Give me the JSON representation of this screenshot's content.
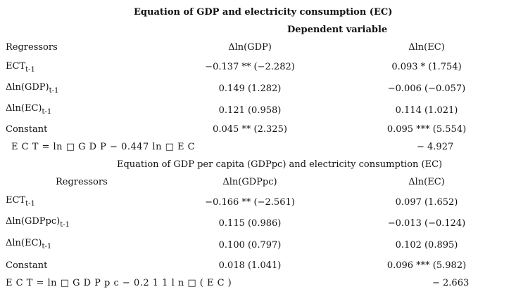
{
  "table1": {
    "title": "Equation of GDP and electricity consumption (EC)",
    "dependent_label": "Dependent variable",
    "header": {
      "regressors": "Regressors",
      "col1": "Δln(GDP)",
      "col2": "Δln(EC)"
    },
    "rows": [
      {
        "label": "ECT",
        "sub": "t-1",
        "v1": "−0.137 ** (−2.282)",
        "v2": "0.093 * (1.754)"
      },
      {
        "label": "Δln(GDP)",
        "sub": "t-1",
        "v1": "0.149 (1.282)",
        "v2": "−0.006 (−0.057)"
      },
      {
        "label": "Δln(EC)",
        "sub": "t-1",
        "v1": "0.121 (0.958)",
        "v2": "0.114 (1.021)"
      },
      {
        "label": "Constant",
        "sub": "",
        "v1": "0.045 ** (2.325)",
        "v2": "0.095 *** (5.554)"
      }
    ],
    "equation": {
      "text": "E C T =  ln  □    G D P    − 0.447   ln   □     E C",
      "const": "− 4.927"
    }
  },
  "table2": {
    "title": "Equation of GDP per capita (GDPpc) and electricity consumption (EC)",
    "header": {
      "regressors": "Regressors",
      "col1": "Δln(GDPpc)",
      "col2": "Δln(EC)"
    },
    "rows": [
      {
        "label": "ECT",
        "sub": "t-1",
        "v1": "−0.166 ** (−2.561)",
        "v2": "0.097 (1.652)"
      },
      {
        "label": "Δln(GDPpc)",
        "sub": "t-1",
        "v1": "0.115 (0.986)",
        "v2": "−0.013 (−0.124)"
      },
      {
        "label": "Δln(EC)",
        "sub": "t-1",
        "v1": "0.100 (0.797)",
        "v2": "0.102 (0.895)"
      },
      {
        "label": "Constant",
        "sub": "",
        "v1": "0.018 (1.041)",
        "v2": "0.096 *** (5.982)"
      }
    ],
    "equation": {
      "text": "E C T =  ln  □    G D P p c    − 0.2 1 1 l n □ ( E C )",
      "const": "− 2.663"
    }
  }
}
